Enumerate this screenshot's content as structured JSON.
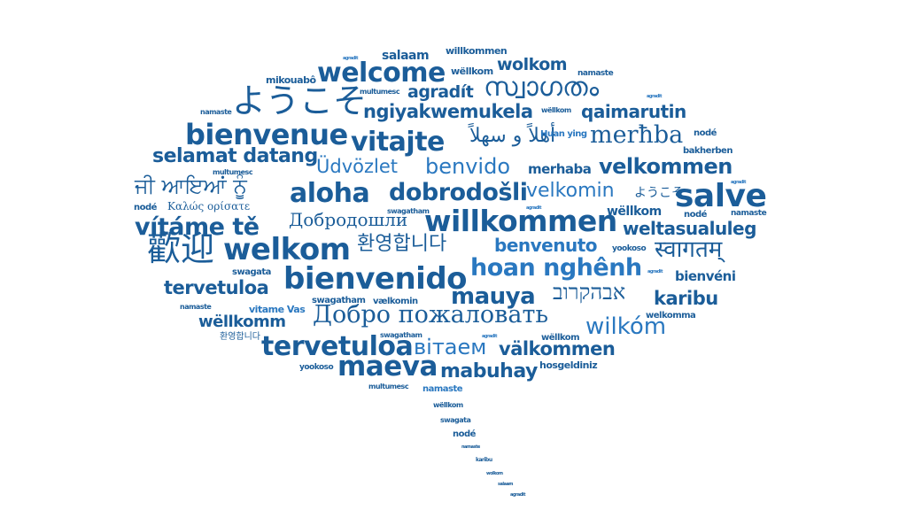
{
  "colors": {
    "dark": "#1b5d99",
    "mid": "#2a78c0",
    "light": "#3d8fd1",
    "background": "#ffffff"
  },
  "words": [
    {
      "text": "salaam",
      "style": "bold",
      "color": "dark"
    },
    {
      "text": "willkommen",
      "style": "bold",
      "color": "dark"
    },
    {
      "text": "agradit",
      "style": "bold",
      "color": "mid"
    },
    {
      "text": "welcome",
      "style": "bold",
      "color": "dark"
    },
    {
      "text": "wëllkom",
      "style": "bold",
      "color": "dark"
    },
    {
      "text": "wolkom",
      "style": "bold",
      "color": "dark"
    },
    {
      "text": "namaste",
      "style": "bold",
      "color": "dark"
    },
    {
      "text": "mikouabô",
      "style": "bold",
      "color": "dark"
    },
    {
      "text": "ようこそ",
      "style": "serif",
      "color": "dark"
    },
    {
      "text": "multumesc",
      "style": "bold",
      "color": "dark"
    },
    {
      "text": "agradít",
      "style": "bold",
      "color": "dark"
    },
    {
      "text": "സ്വാഗതം",
      "style": "serif",
      "color": "dark"
    },
    {
      "text": "agradit",
      "style": "bold",
      "color": "mid"
    },
    {
      "text": "namaste",
      "style": "bold",
      "color": "dark"
    },
    {
      "text": "ngiyakwemukela",
      "style": "bold",
      "color": "dark"
    },
    {
      "text": "wëllkom",
      "style": "bold",
      "color": "dark"
    },
    {
      "text": "qaimarutin",
      "style": "bold",
      "color": "dark"
    },
    {
      "text": "bienvenue",
      "style": "bold",
      "color": "dark"
    },
    {
      "text": "vitajte",
      "style": "bold",
      "color": "dark"
    },
    {
      "text": "أهلاً و سهلاً",
      "style": "serif",
      "color": "dark"
    },
    {
      "text": "Huan ying",
      "style": "bold",
      "color": "mid"
    },
    {
      "text": "merħba",
      "style": "serif",
      "color": "dark"
    },
    {
      "text": "nodé",
      "style": "bold",
      "color": "dark"
    },
    {
      "text": "bakherben",
      "style": "bold",
      "color": "dark"
    },
    {
      "text": "selamat datang",
      "style": "bold",
      "color": "dark"
    },
    {
      "text": "Üdvözlet",
      "style": "light",
      "color": "mid"
    },
    {
      "text": "benvido",
      "style": "light",
      "color": "mid"
    },
    {
      "text": "merhaba",
      "style": "bold",
      "color": "dark"
    },
    {
      "text": "velkommen",
      "style": "bold",
      "color": "dark"
    },
    {
      "text": "multumesc",
      "style": "bold",
      "color": "dark"
    },
    {
      "text": "ਜੀ ਆਇਆਂ ਨੂੰ",
      "style": "serif",
      "color": "dark"
    },
    {
      "text": "aloha",
      "style": "bold",
      "color": "dark"
    },
    {
      "text": "dobrodošli",
      "style": "bold",
      "color": "dark"
    },
    {
      "text": "velkomin",
      "style": "light",
      "color": "mid"
    },
    {
      "text": "ようこそ",
      "style": "light",
      "color": "dark"
    },
    {
      "text": "agradit",
      "style": "bold",
      "color": "mid"
    },
    {
      "text": "salve",
      "style": "bold",
      "color": "dark"
    },
    {
      "text": "nodé",
      "style": "bold",
      "color": "dark"
    },
    {
      "text": "Καλώς ορίσατε",
      "style": "serif",
      "color": "dark"
    },
    {
      "text": "swagatham",
      "style": "bold",
      "color": "dark"
    },
    {
      "text": "agradit",
      "style": "bold",
      "color": "mid"
    },
    {
      "text": "wëllkom",
      "style": "bold",
      "color": "dark"
    },
    {
      "text": "nodé",
      "style": "bold",
      "color": "dark"
    },
    {
      "text": "namaste",
      "style": "bold",
      "color": "dark"
    },
    {
      "text": "vítáme tě",
      "style": "bold",
      "color": "dark"
    },
    {
      "text": "Добродошли",
      "style": "serif",
      "color": "dark"
    },
    {
      "text": "willkommen",
      "style": "bold",
      "color": "dark"
    },
    {
      "text": "weltasualuleg",
      "style": "bold",
      "color": "dark"
    },
    {
      "text": "歡迎",
      "style": "serif",
      "color": "dark"
    },
    {
      "text": "welkom",
      "style": "bold",
      "color": "dark"
    },
    {
      "text": "환영합니다",
      "style": "light",
      "color": "dark"
    },
    {
      "text": "benvenuto",
      "style": "bold",
      "color": "mid"
    },
    {
      "text": "yookoso",
      "style": "bold",
      "color": "dark"
    },
    {
      "text": "स्वागतम्",
      "style": "serif",
      "color": "dark"
    },
    {
      "text": "swagata",
      "style": "bold",
      "color": "dark"
    },
    {
      "text": "hoan nghênh",
      "style": "bold",
      "color": "mid"
    },
    {
      "text": "agradit",
      "style": "bold",
      "color": "mid"
    },
    {
      "text": "bienvéni",
      "style": "bold",
      "color": "dark"
    },
    {
      "text": "tervetuloa",
      "style": "bold",
      "color": "dark"
    },
    {
      "text": "bienvenido",
      "style": "bold",
      "color": "dark"
    },
    {
      "text": "mauya",
      "style": "bold",
      "color": "dark"
    },
    {
      "text": "אבהקרוב",
      "style": "serif",
      "color": "dark"
    },
    {
      "text": "karibu",
      "style": "bold",
      "color": "dark"
    },
    {
      "text": "swagatham",
      "style": "bold",
      "color": "dark"
    },
    {
      "text": "vælkomin",
      "style": "bold",
      "color": "dark"
    },
    {
      "text": "namaste",
      "style": "bold",
      "color": "dark"
    },
    {
      "text": "vitame Vas",
      "style": "bold",
      "color": "mid"
    },
    {
      "text": "Добро пожаловать",
      "style": "serif",
      "color": "dark"
    },
    {
      "text": "welkomma",
      "style": "bold",
      "color": "dark"
    },
    {
      "text": "wëllkomm",
      "style": "bold",
      "color": "dark"
    },
    {
      "text": "wilkóm",
      "style": "light",
      "color": "mid"
    },
    {
      "text": "환영합니다",
      "style": "light",
      "color": "dark"
    },
    {
      "text": "swagatham",
      "style": "bold",
      "color": "dark"
    },
    {
      "text": "agradit",
      "style": "bold",
      "color": "mid"
    },
    {
      "text": "wëllkom",
      "style": "bold",
      "color": "dark"
    },
    {
      "text": "tervetuloa",
      "style": "bold",
      "color": "dark"
    },
    {
      "text": "вітаем",
      "style": "light",
      "color": "mid"
    },
    {
      "text": "välkommen",
      "style": "bold",
      "color": "dark"
    },
    {
      "text": "yookoso",
      "style": "bold",
      "color": "dark"
    },
    {
      "text": "maeva",
      "style": "bold",
      "color": "dark"
    },
    {
      "text": "mabuhay",
      "style": "bold",
      "color": "dark"
    },
    {
      "text": "hosgeldiniz",
      "style": "bold",
      "color": "dark"
    },
    {
      "text": "multumesc",
      "style": "bold",
      "color": "dark"
    },
    {
      "text": "namaste",
      "style": "bold",
      "color": "mid"
    },
    {
      "text": "wëllkom",
      "style": "bold",
      "color": "dark"
    },
    {
      "text": "swagata",
      "style": "bold",
      "color": "dark"
    },
    {
      "text": "nodé",
      "style": "bold",
      "color": "dark"
    },
    {
      "text": "namaste",
      "style": "bold",
      "color": "dark"
    },
    {
      "text": "karibu",
      "style": "bold",
      "color": "dark"
    },
    {
      "text": "wolkom",
      "style": "bold",
      "color": "dark"
    },
    {
      "text": "salaam",
      "style": "bold",
      "color": "dark"
    },
    {
      "text": "agradit",
      "style": "bold",
      "color": "dark"
    }
  ]
}
